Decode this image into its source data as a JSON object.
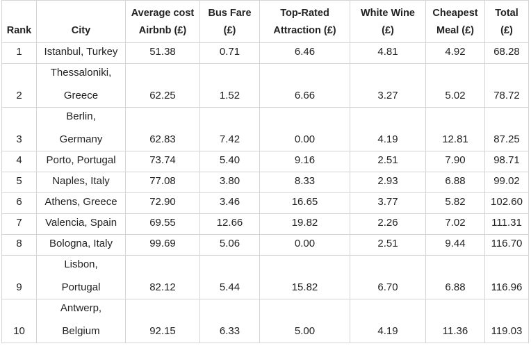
{
  "table": {
    "header": [
      [
        "Rank"
      ],
      [
        "City"
      ],
      [
        "Average cost",
        "Airbnb (£)"
      ],
      [
        "Bus Fare",
        "(£)"
      ],
      [
        "Top-Rated",
        "Attraction (£)"
      ],
      [
        "White Wine",
        "(£)"
      ],
      [
        "Cheapest",
        "Meal (£)"
      ],
      [
        "Total",
        "(£)"
      ]
    ],
    "rows": [
      [
        "1",
        [
          "Istanbul, Turkey"
        ],
        "51.38",
        "0.71",
        "6.46",
        "4.81",
        "4.92",
        "68.28"
      ],
      [
        "2",
        [
          "Thessaloniki,",
          "Greece"
        ],
        "62.25",
        "1.52",
        "6.66",
        "3.27",
        "5.02",
        "78.72"
      ],
      [
        "3",
        [
          "Berlin,",
          "Germany"
        ],
        "62.83",
        "7.42",
        "0.00",
        "4.19",
        "12.81",
        "87.25"
      ],
      [
        "4",
        [
          "Porto, Portugal"
        ],
        "73.74",
        "5.40",
        "9.16",
        "2.51",
        "7.90",
        "98.71"
      ],
      [
        "5",
        [
          "Naples, Italy"
        ],
        "77.08",
        "3.80",
        "8.33",
        "2.93",
        "6.88",
        "99.02"
      ],
      [
        "6",
        [
          "Athens, Greece"
        ],
        "72.90",
        "3.46",
        "16.65",
        "3.77",
        "5.82",
        "102.60"
      ],
      [
        "7",
        [
          "Valencia, Spain"
        ],
        "69.55",
        "12.66",
        "19.82",
        "2.26",
        "7.02",
        "111.31"
      ],
      [
        "8",
        [
          "Bologna, Italy"
        ],
        "99.69",
        "5.06",
        "0.00",
        "2.51",
        "9.44",
        "116.70"
      ],
      [
        "9",
        [
          "Lisbon,",
          "Portugal"
        ],
        "82.12",
        "5.44",
        "15.82",
        "6.70",
        "6.88",
        "116.96"
      ],
      [
        "10",
        [
          "Antwerp,",
          "Belgium"
        ],
        "92.15",
        "6.33",
        "5.00",
        "4.19",
        "11.36",
        "119.03"
      ]
    ]
  }
}
